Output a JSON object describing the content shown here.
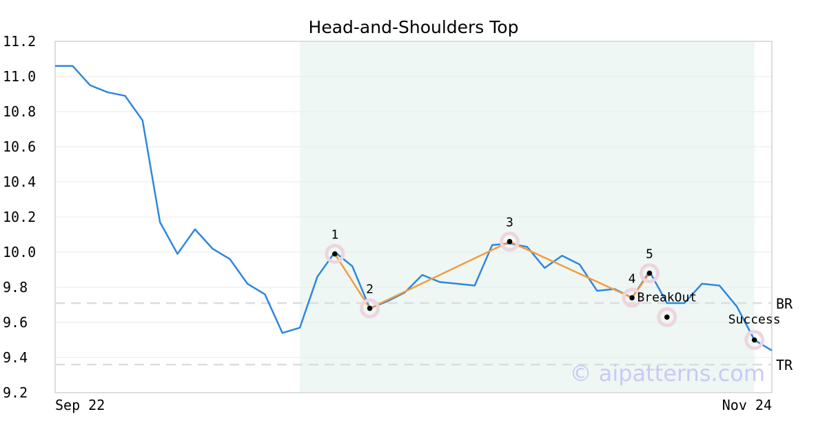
{
  "chart_data": {
    "type": "line",
    "title": "Head-and-Shoulders Top",
    "ylim": [
      9.2,
      11.2
    ],
    "yticks": [
      "11.2",
      "11.0",
      "10.8",
      "10.6",
      "10.4",
      "10.2",
      "10.0",
      "9.8",
      "9.6",
      "9.4",
      "9.2"
    ],
    "x_tick_labels": {
      "start": "Sep 22",
      "end": "Nov 24"
    },
    "x_count": 42,
    "grid": true,
    "colors": {
      "price": "#2e86de",
      "pattern": "#f39c3d",
      "shade": "#eef7f3",
      "marker_halo": "#eed5dd",
      "reference": "#dddddd"
    },
    "series": [
      {
        "values": [
          11.06,
          11.06,
          10.95,
          10.91,
          10.89,
          10.75,
          10.17,
          9.99,
          10.13,
          10.02,
          9.96,
          9.82,
          9.76,
          9.54,
          9.57,
          9.86,
          10.0,
          9.92,
          9.68,
          9.72,
          9.77,
          9.87,
          9.83,
          9.82,
          9.81,
          10.04,
          10.05,
          10.03,
          9.91,
          9.98,
          9.93,
          9.78,
          9.79,
          9.74,
          9.89,
          9.71,
          9.71,
          9.82,
          9.81,
          9.69,
          9.5,
          9.44
        ]
      }
    ],
    "pattern_region": {
      "start_index": 14,
      "end_index": 40
    },
    "pattern_points": [
      {
        "label": "1",
        "index": 16,
        "value": 9.99
      },
      {
        "label": "2",
        "index": 18,
        "value": 9.68
      },
      {
        "label": "3",
        "index": 26,
        "value": 10.06
      },
      {
        "label": "4",
        "index": 33,
        "value": 9.74
      },
      {
        "label": "5",
        "index": 34,
        "value": 9.88
      }
    ],
    "events": [
      {
        "label": "BreakOut",
        "index": 35,
        "value": 9.63
      },
      {
        "label": "Success",
        "index": 40,
        "value": 9.5
      }
    ],
    "reference_lines": [
      {
        "label": "BR",
        "value": 9.71
      },
      {
        "label": "TR",
        "value": 9.36
      }
    ],
    "watermark": "© aipatterns.com"
  }
}
